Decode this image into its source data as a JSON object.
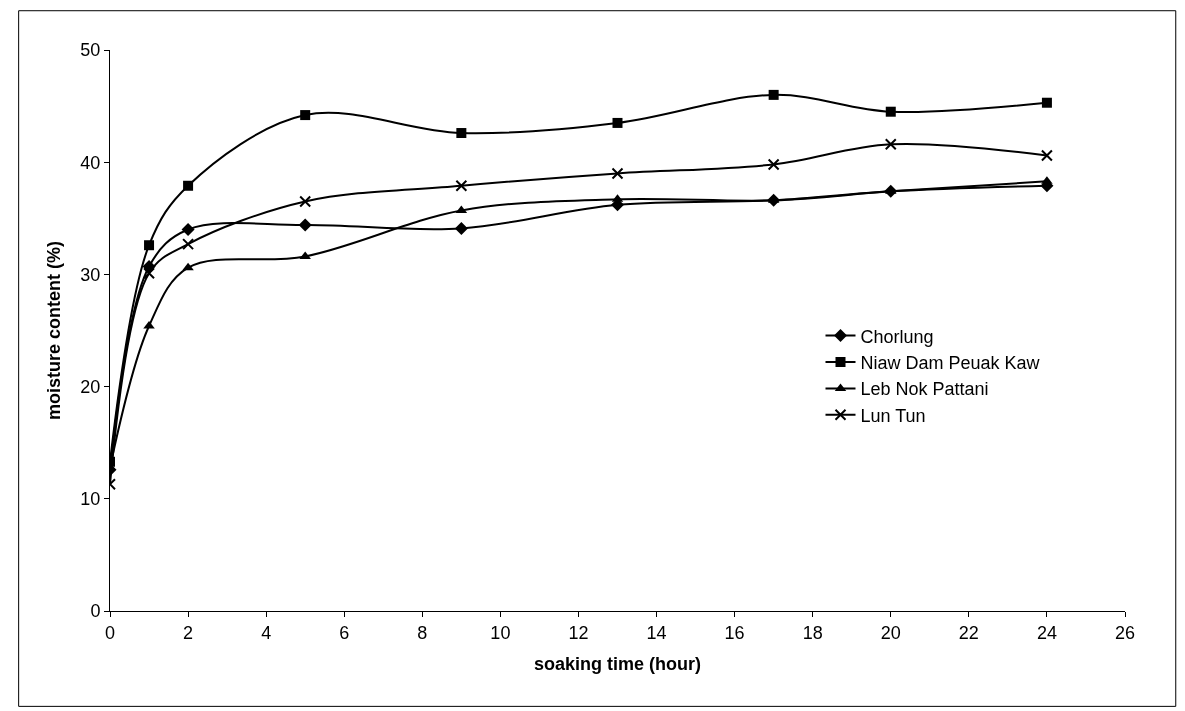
{
  "chart_data": {
    "type": "line",
    "xlabel": "soaking time (hour)",
    "ylabel": "moisture content (%)",
    "x": [
      0,
      1,
      2,
      5,
      9,
      13,
      17,
      20,
      24
    ],
    "series": [
      {
        "name": "Chorlung",
        "color": "#000000",
        "marker": "diamond",
        "values": [
          12.6,
          30.7,
          34.0,
          34.4,
          34.1,
          36.2,
          36.6,
          37.4,
          37.9
        ]
      },
      {
        "name": "Niaw Dam Peuak Kaw",
        "color": "#000000",
        "marker": "square",
        "values": [
          13.3,
          32.6,
          37.9,
          44.2,
          42.6,
          43.5,
          46.0,
          44.5,
          45.3
        ]
      },
      {
        "name": "Leb Nok Pattani",
        "color": "#000000",
        "marker": "triangle",
        "values": [
          12.8,
          25.4,
          30.6,
          31.6,
          35.7,
          36.7,
          36.6,
          37.4,
          38.3
        ]
      },
      {
        "name": "Lun Tun",
        "color": "#000000",
        "marker": "cross",
        "values": [
          11.3,
          30.1,
          32.7,
          36.5,
          37.9,
          39.0,
          39.8,
          41.6,
          40.6
        ]
      }
    ],
    "xlim": [
      0,
      26
    ],
    "xticks": [
      0,
      2,
      4,
      6,
      8,
      10,
      12,
      14,
      16,
      18,
      20,
      22,
      24,
      26
    ],
    "ylim": [
      0,
      50
    ],
    "yticks": [
      0,
      10,
      20,
      30,
      40,
      50
    ],
    "legend": "right",
    "line_style": "solid"
  }
}
